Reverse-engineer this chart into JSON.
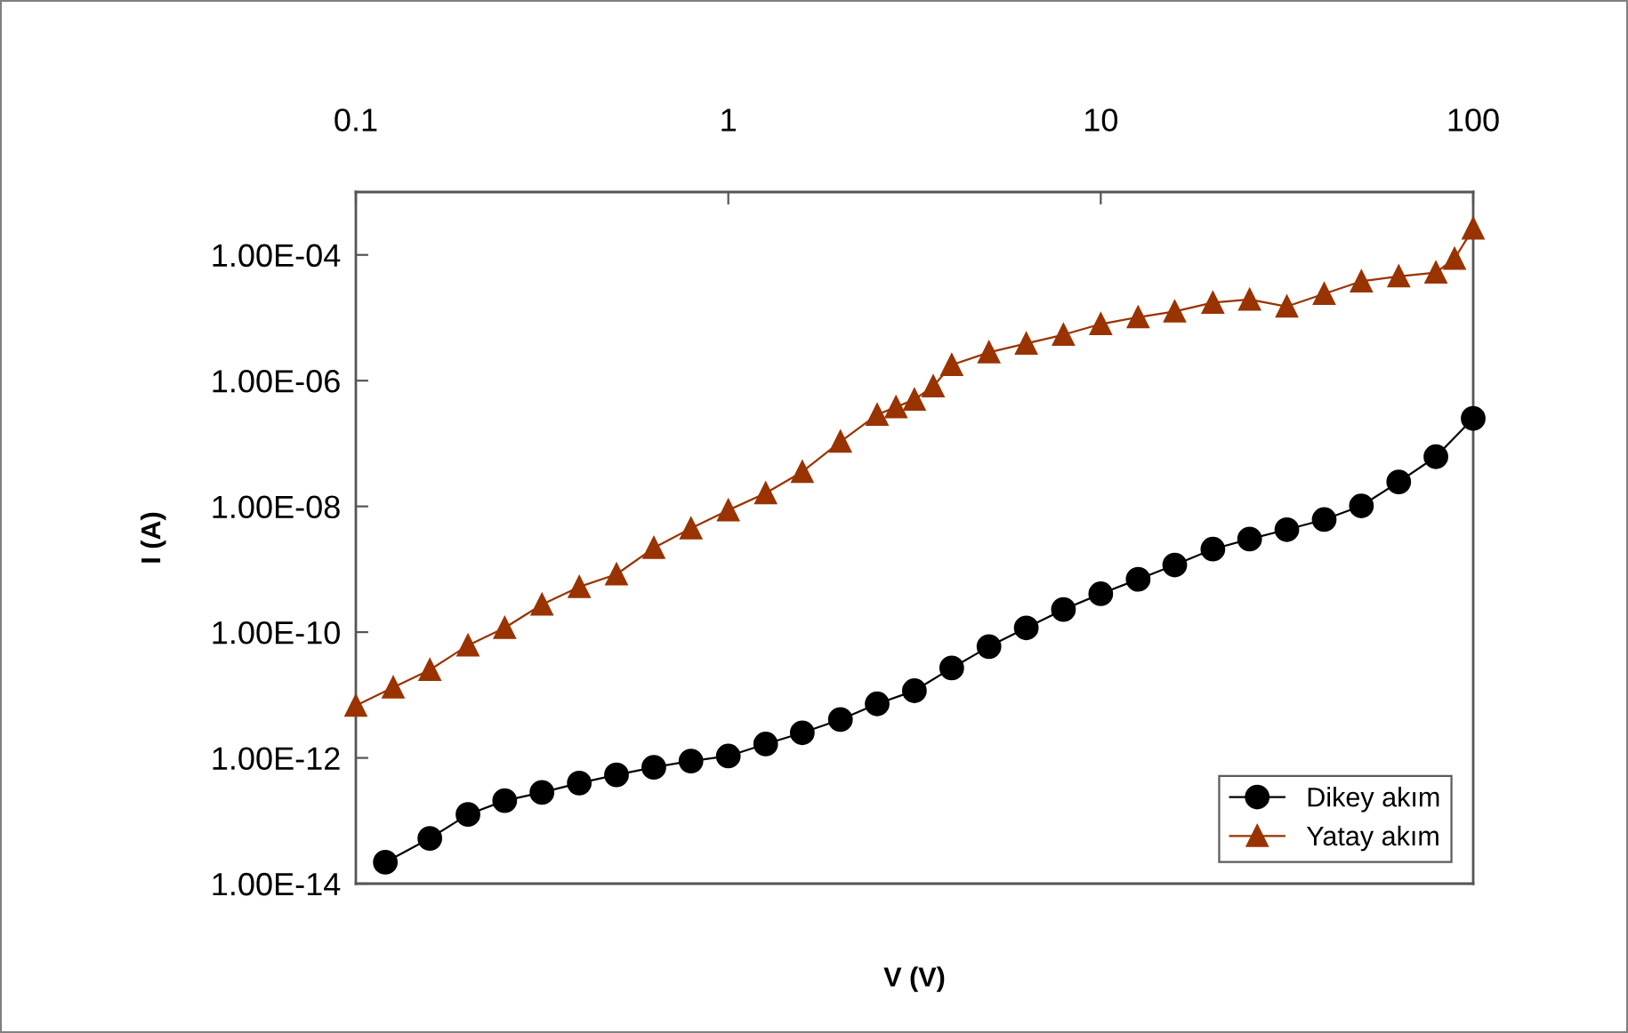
{
  "chart_data": {
    "type": "line",
    "xlabel": "V (V)",
    "ylabel": "I (A)",
    "log": "xy",
    "grid": false,
    "legend": "bottom right",
    "line_style": "solid",
    "xlim": [
      0.1,
      100
    ],
    "xticks": [
      0.1,
      1,
      10,
      100
    ],
    "ylim": [
      1e-14,
      0.001
    ],
    "yticks": [
      {
        "value": 1e-14,
        "label": "1.00E-14"
      },
      {
        "value": 1e-12,
        "label": "1.00E-12"
      },
      {
        "value": 1e-10,
        "label": "1.00E-10"
      },
      {
        "value": 1e-08,
        "label": "1.00E-08"
      },
      {
        "value": 1e-06,
        "label": "1.00E-06"
      },
      {
        "value": 0.0001,
        "label": "1.00E-04"
      }
    ],
    "series": [
      {
        "name": "Dikey akım",
        "color": "#000000",
        "marker": "circle",
        "x": [
          0.12,
          0.158,
          0.2,
          0.251,
          0.316,
          0.398,
          0.501,
          0.631,
          0.794,
          1,
          1.26,
          1.58,
          2.0,
          2.51,
          3.16,
          3.98,
          5.01,
          6.31,
          7.94,
          10,
          12.6,
          15.8,
          20,
          25.1,
          31.6,
          39.8,
          50.1,
          63.1,
          79.4,
          100
        ],
        "values": [
          2.19e-14,
          5.25e-14,
          1.26e-13,
          2.09e-13,
          2.82e-13,
          3.98e-13,
          5.37e-13,
          7.08e-13,
          8.91e-13,
          1.07e-12,
          1.66e-12,
          2.51e-12,
          4.07e-12,
          7.24e-12,
          1.17e-11,
          2.69e-11,
          5.89e-11,
          1.17e-10,
          2.29e-10,
          4.07e-10,
          6.92e-10,
          1.17e-09,
          2.09e-09,
          3.02e-09,
          4.27e-09,
          6.17e-09,
          1.02e-08,
          2.45e-08,
          6.17e-08,
          2.51e-07
        ]
      },
      {
        "name": "Yatay akım",
        "color": "#993300",
        "marker": "triangle",
        "x": [
          0.1,
          0.126,
          0.158,
          0.2,
          0.251,
          0.316,
          0.398,
          0.501,
          0.631,
          0.794,
          1,
          1.26,
          1.58,
          2.0,
          2.51,
          2.82,
          3.16,
          3.55,
          3.98,
          5.01,
          6.31,
          7.94,
          10,
          12.6,
          15.8,
          20,
          25.1,
          31.6,
          39.8,
          50.1,
          63.1,
          79.4,
          89.1,
          100
        ],
        "values": [
          6.76e-12,
          1.32e-11,
          2.51e-11,
          6.17e-11,
          1.17e-10,
          2.75e-10,
          5.25e-10,
          8.32e-10,
          2.19e-09,
          4.47e-09,
          8.71e-09,
          1.62e-08,
          3.55e-08,
          1.07e-07,
          2.88e-07,
          3.8e-07,
          5.01e-07,
          8.13e-07,
          1.78e-06,
          2.82e-06,
          3.89e-06,
          5.37e-06,
          7.94e-06,
          1.02e-05,
          1.26e-05,
          1.74e-05,
          1.95e-05,
          1.51e-05,
          2.4e-05,
          3.8e-05,
          4.57e-05,
          5.25e-05,
          8.71e-05,
          0.000263
        ]
      }
    ]
  }
}
